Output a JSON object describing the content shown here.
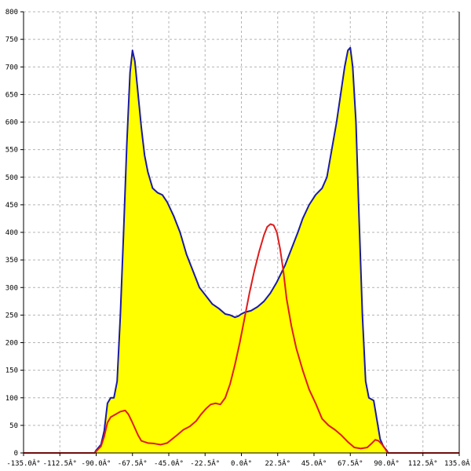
{
  "chart_data": {
    "type": "area",
    "title": "",
    "xlabel": "",
    "ylabel": "",
    "xlim": [
      -135,
      135
    ],
    "ylim": [
      0,
      800
    ],
    "grid": true,
    "x_ticks": [
      {
        "value": -135,
        "label": "-135.0Â°"
      },
      {
        "value": -112.5,
        "label": "-112.5Â°"
      },
      {
        "value": -90,
        "label": "-90.0Â°"
      },
      {
        "value": -67.5,
        "label": "-67.5Â°"
      },
      {
        "value": -45,
        "label": "-45.0Â°"
      },
      {
        "value": -22.5,
        "label": "-22.5Â°"
      },
      {
        "value": 0,
        "label": "0.0Â°"
      },
      {
        "value": 22.5,
        "label": "22.5Â°"
      },
      {
        "value": 45,
        "label": "45.0Â°"
      },
      {
        "value": 67.5,
        "label": "67.5Â°"
      },
      {
        "value": 90,
        "label": "90.0Â°"
      },
      {
        "value": 112.5,
        "label": "112.5Â°"
      },
      {
        "value": 135,
        "label": "135.0Â°"
      }
    ],
    "y_ticks": [
      {
        "value": 0,
        "label": "0"
      },
      {
        "value": 50,
        "label": "50"
      },
      {
        "value": 100,
        "label": "100"
      },
      {
        "value": 150,
        "label": "150"
      },
      {
        "value": 200,
        "label": "200"
      },
      {
        "value": 250,
        "label": "250"
      },
      {
        "value": 300,
        "label": "300"
      },
      {
        "value": 350,
        "label": "350"
      },
      {
        "value": 400,
        "label": "400"
      },
      {
        "value": 450,
        "label": "450"
      },
      {
        "value": 500,
        "label": "500"
      },
      {
        "value": 550,
        "label": "550"
      },
      {
        "value": 600,
        "label": "600"
      },
      {
        "value": 650,
        "label": "650"
      },
      {
        "value": 700,
        "label": "700"
      },
      {
        "value": 750,
        "label": "750"
      },
      {
        "value": 800,
        "label": "800"
      }
    ],
    "series": [
      {
        "color": "#1a1aa6",
        "fill": "#ffff00",
        "points": [
          [
            -135,
            0
          ],
          [
            -91,
            0
          ],
          [
            -90,
            5
          ],
          [
            -87,
            15
          ],
          [
            -85,
            40
          ],
          [
            -83,
            90
          ],
          [
            -81,
            100
          ],
          [
            -79,
            100
          ],
          [
            -77,
            130
          ],
          [
            -75,
            250
          ],
          [
            -73,
            400
          ],
          [
            -71,
            560
          ],
          [
            -69,
            690
          ],
          [
            -67.5,
            730
          ],
          [
            -66,
            710
          ],
          [
            -64,
            650
          ],
          [
            -62,
            590
          ],
          [
            -60,
            540
          ],
          [
            -58,
            510
          ],
          [
            -55,
            480
          ],
          [
            -52,
            472
          ],
          [
            -49,
            468
          ],
          [
            -46,
            455
          ],
          [
            -42,
            430
          ],
          [
            -38,
            400
          ],
          [
            -34,
            360
          ],
          [
            -30,
            330
          ],
          [
            -26,
            300
          ],
          [
            -22,
            285
          ],
          [
            -18,
            270
          ],
          [
            -14,
            262
          ],
          [
            -10,
            252
          ],
          [
            -7,
            250
          ],
          [
            -4,
            246
          ],
          [
            -2,
            248
          ],
          [
            0,
            252
          ],
          [
            2,
            255
          ],
          [
            6,
            258
          ],
          [
            10,
            265
          ],
          [
            14,
            275
          ],
          [
            18,
            290
          ],
          [
            22,
            310
          ],
          [
            27,
            340
          ],
          [
            31,
            370
          ],
          [
            35,
            400
          ],
          [
            38,
            425
          ],
          [
            42,
            450
          ],
          [
            46,
            468
          ],
          [
            50,
            480
          ],
          [
            53,
            500
          ],
          [
            56,
            550
          ],
          [
            59,
            600
          ],
          [
            62,
            660
          ],
          [
            64,
            700
          ],
          [
            66,
            730
          ],
          [
            67.5,
            735
          ],
          [
            69,
            700
          ],
          [
            71,
            600
          ],
          [
            73,
            420
          ],
          [
            75,
            250
          ],
          [
            77,
            130
          ],
          [
            79,
            100
          ],
          [
            82,
            95
          ],
          [
            84,
            60
          ],
          [
            86,
            25
          ],
          [
            88,
            12
          ],
          [
            90,
            5
          ],
          [
            91,
            0
          ],
          [
            135,
            0
          ]
        ]
      },
      {
        "color": "#e01c1c",
        "points": [
          [
            -135,
            0
          ],
          [
            -91,
            0
          ],
          [
            -90,
            3
          ],
          [
            -87,
            12
          ],
          [
            -85,
            30
          ],
          [
            -83,
            55
          ],
          [
            -81,
            65
          ],
          [
            -78,
            70
          ],
          [
            -75,
            75
          ],
          [
            -72,
            77
          ],
          [
            -70,
            70
          ],
          [
            -68,
            58
          ],
          [
            -66,
            45
          ],
          [
            -64,
            32
          ],
          [
            -62,
            22
          ],
          [
            -58,
            18
          ],
          [
            -54,
            17
          ],
          [
            -50,
            15
          ],
          [
            -46,
            18
          ],
          [
            -43,
            25
          ],
          [
            -40,
            32
          ],
          [
            -36,
            42
          ],
          [
            -32,
            48
          ],
          [
            -28,
            58
          ],
          [
            -25,
            70
          ],
          [
            -22,
            80
          ],
          [
            -19,
            88
          ],
          [
            -16,
            90
          ],
          [
            -13,
            88
          ],
          [
            -10,
            100
          ],
          [
            -7,
            125
          ],
          [
            -4,
            160
          ],
          [
            -1,
            200
          ],
          [
            2,
            245
          ],
          [
            5,
            290
          ],
          [
            8,
            330
          ],
          [
            11,
            365
          ],
          [
            14,
            395
          ],
          [
            16,
            410
          ],
          [
            18,
            415
          ],
          [
            20,
            413
          ],
          [
            22,
            400
          ],
          [
            24,
            370
          ],
          [
            26,
            330
          ],
          [
            28,
            280
          ],
          [
            31,
            230
          ],
          [
            34,
            190
          ],
          [
            38,
            150
          ],
          [
            42,
            115
          ],
          [
            46,
            90
          ],
          [
            50,
            62
          ],
          [
            54,
            50
          ],
          [
            58,
            42
          ],
          [
            62,
            32
          ],
          [
            66,
            20
          ],
          [
            70,
            10
          ],
          [
            74,
            8
          ],
          [
            78,
            10
          ],
          [
            81,
            18
          ],
          [
            83,
            24
          ],
          [
            85,
            22
          ],
          [
            87,
            16
          ],
          [
            89,
            8
          ],
          [
            90,
            3
          ],
          [
            91,
            0
          ],
          [
            135,
            0
          ]
        ]
      }
    ]
  }
}
